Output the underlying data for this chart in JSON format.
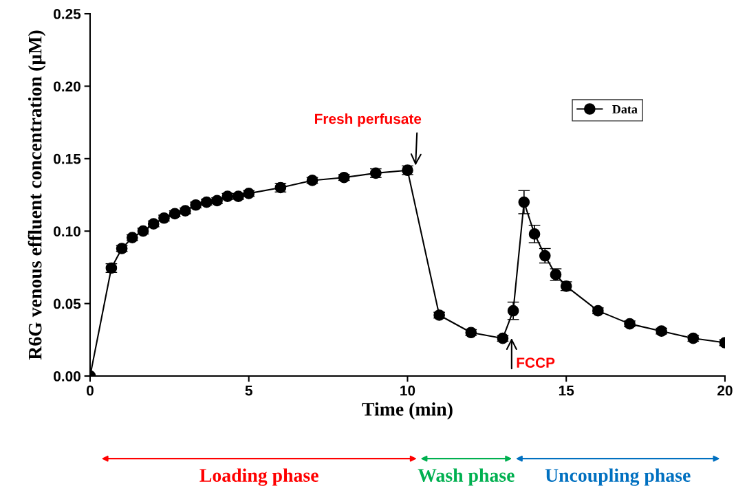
{
  "chart_data": {
    "type": "line",
    "xlabel": "Time (min)",
    "ylabel": "R6G venous effluent concentration (µM)",
    "x": [
      0,
      0.67,
      1,
      1.33,
      1.67,
      2,
      2.33,
      2.67,
      3,
      3.33,
      3.67,
      4,
      4.33,
      4.67,
      5,
      6,
      7,
      8,
      9,
      10,
      11,
      12,
      13,
      13.33,
      13.67,
      14,
      14.33,
      14.67,
      15,
      16,
      17,
      18,
      19,
      20
    ],
    "series": [
      {
        "name": "Data",
        "color": "#000000",
        "values": [
          0,
          0.0745,
          0.088,
          0.0955,
          0.1,
          0.105,
          0.109,
          0.112,
          0.114,
          0.118,
          0.12,
          0.121,
          0.124,
          0.124,
          0.126,
          0.13,
          0.135,
          0.137,
          0.14,
          0.142,
          0.042,
          0.03,
          0.026,
          0.045,
          0.12,
          0.098,
          0.083,
          0.07,
          0.062,
          0.045,
          0.036,
          0.031,
          0.026,
          0.023
        ],
        "errors": [
          null,
          0.003,
          0.002,
          0.002,
          0.002,
          0.002,
          0.002,
          0.002,
          0.002,
          0.002,
          0.002,
          0.002,
          0.002,
          0.002,
          0.002,
          0.003,
          0.002,
          0.002,
          0.003,
          0.003,
          0.002,
          0.002,
          0.002,
          0.006,
          0.008,
          0.006,
          0.005,
          0.004,
          0.003,
          0.002,
          0.002,
          0.002,
          0.002,
          0.002
        ]
      }
    ],
    "xlim": [
      0,
      20
    ],
    "xticks": [
      0,
      5,
      10,
      15,
      20
    ],
    "ylim": [
      0,
      0.25
    ],
    "yticks": [
      {
        "value": 0,
        "label": "0.00"
      },
      {
        "value": 0.05,
        "label": "0.05"
      },
      {
        "value": 0.1,
        "label": "0.10"
      },
      {
        "value": 0.15,
        "label": "0.15"
      },
      {
        "value": 0.2,
        "label": "0.20"
      },
      {
        "value": 0.25,
        "label": "0.25"
      }
    ],
    "annotations": [
      {
        "text": "Fresh perfusate",
        "x": 10.25,
        "y": 0.144
      },
      "FCCP",
      "Loading phase",
      "Wash phase",
      "Uncoupling phase"
    ],
    "marker": "circle",
    "line_style": "solid",
    "grid": false,
    "legend": "top right"
  }
}
